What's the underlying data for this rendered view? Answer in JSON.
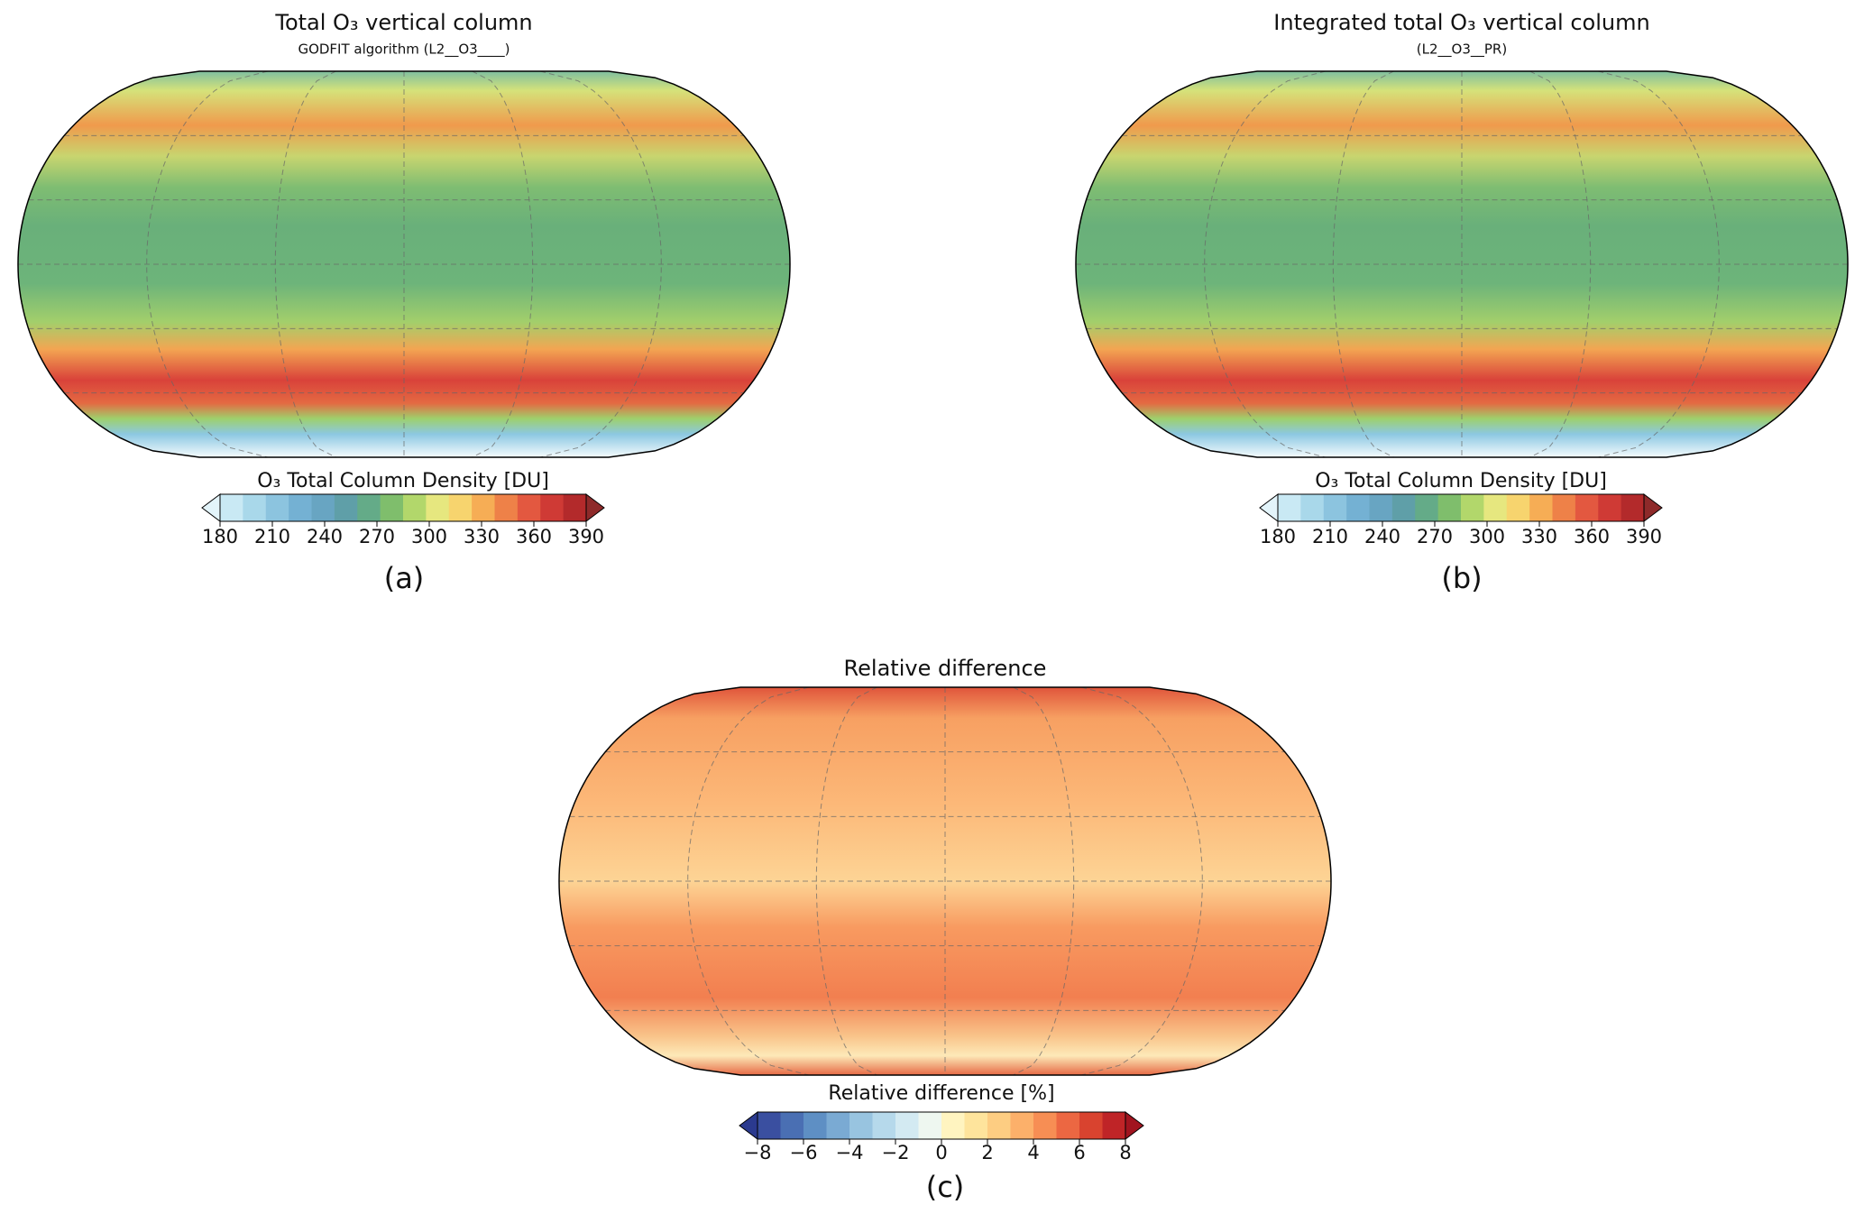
{
  "panels": [
    {
      "title": "Total O₃ vertical column",
      "subtitle": "GODFIT algorithm (L2__O3____)",
      "colorbar": {
        "label": "O₃ Total Column Density [DU]",
        "lim": [
          180,
          390
        ],
        "ticks": [
          180,
          210,
          240,
          270,
          300,
          330,
          360,
          390
        ],
        "colors": [
          "#c9e9f4",
          "#a9d8ea",
          "#8cc4df",
          "#74b1d3",
          "#68a5c2",
          "#5f9fa8",
          "#64ab88",
          "#7fbe6c",
          "#b2d76b",
          "#e6e77f",
          "#f7d46e",
          "#f6ad55",
          "#ee8148",
          "#e35840",
          "#cf3a35",
          "#b32a2b"
        ],
        "extend_colors": [
          "#e3f4fa",
          "#8e2a2a"
        ]
      },
      "caption": "(a)"
    },
    {
      "title": "Integrated total O₃ vertical column",
      "subtitle": "(L2__O3__PR)",
      "colorbar": {
        "label": "O₃ Total Column Density [DU]",
        "lim": [
          180,
          390
        ],
        "ticks": [
          180,
          210,
          240,
          270,
          300,
          330,
          360,
          390
        ],
        "colors": [
          "#c9e9f4",
          "#a9d8ea",
          "#8cc4df",
          "#74b1d3",
          "#68a5c2",
          "#5f9fa8",
          "#64ab88",
          "#7fbe6c",
          "#b2d76b",
          "#e6e77f",
          "#f7d46e",
          "#f6ad55",
          "#ee8148",
          "#e35840",
          "#cf3a35",
          "#b32a2b"
        ],
        "extend_colors": [
          "#e3f4fa",
          "#8e2a2a"
        ]
      },
      "caption": "(b)"
    },
    {
      "title": "Relative difference",
      "colorbar": {
        "label": "Relative difference [%]",
        "lim": [
          -8,
          8
        ],
        "ticks": [
          {
            "value": -8,
            "label": "−8"
          },
          {
            "value": -6,
            "label": "−6"
          },
          {
            "value": -4,
            "label": "−4"
          },
          {
            "value": -2,
            "label": "−2"
          },
          0,
          2,
          4,
          6,
          8
        ],
        "colors": [
          "#3a4fa0",
          "#4a6fb3",
          "#5e8fc4",
          "#7aaad3",
          "#98c4e0",
          "#b6d9eb",
          "#d3eaf2",
          "#eef7f0",
          "#fff4c0",
          "#fee49c",
          "#fdcd82",
          "#fcb06a",
          "#f78e54",
          "#ec6742",
          "#d9432f",
          "#bf2427"
        ],
        "extend_colors": [
          "#2b3a8f",
          "#a1141f"
        ]
      },
      "caption": "(c)"
    }
  ]
}
